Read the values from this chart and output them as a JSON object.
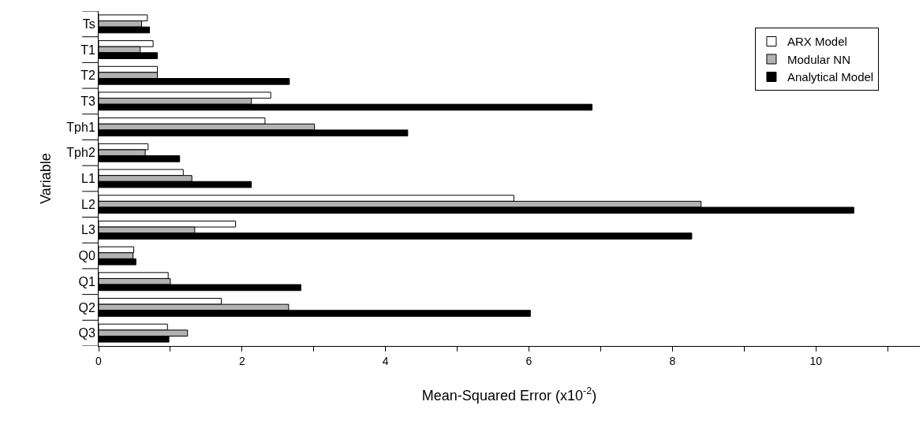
{
  "chart_data": {
    "type": "bar",
    "orientation": "horizontal",
    "xlabel": "Mean-Squared Error (x10$^{-2}$)",
    "ylabel": "Variable",
    "categories": [
      "Ts",
      "T1",
      "T2",
      "T3",
      "Tph1",
      "Tph2",
      "L1",
      "L2",
      "L3",
      "Q0",
      "Q1",
      "Q2",
      "Q3"
    ],
    "series": [
      {
        "name": "ARX Model",
        "color": "#ffffff",
        "values": [
          0.68,
          0.76,
          0.82,
          2.4,
          2.32,
          0.69,
          1.18,
          5.79,
          1.91,
          0.49,
          0.97,
          1.71,
          0.96
        ]
      },
      {
        "name": "Modular NN",
        "color": "#b2b2b2",
        "values": [
          0.6,
          0.58,
          0.82,
          2.13,
          3.01,
          0.65,
          1.3,
          8.4,
          1.34,
          0.48,
          1.0,
          2.65,
          1.24
        ]
      },
      {
        "name": "Analytical Model",
        "color": "#000000",
        "values": [
          0.71,
          0.82,
          2.66,
          6.88,
          4.31,
          1.13,
          2.13,
          10.53,
          8.27,
          0.52,
          2.82,
          6.02,
          0.98
        ]
      }
    ],
    "xlim": [
      0,
      11.45
    ],
    "xticks": [
      0,
      {
        "value": 1,
        "label": null
      },
      2,
      {
        "value": 3,
        "label": null
      },
      4,
      {
        "value": 5,
        "label": null
      },
      6,
      {
        "value": 7,
        "label": null
      },
      8,
      {
        "value": 9,
        "label": null
      },
      10,
      {
        "value": 11,
        "label": null
      }
    ],
    "legend": "top right"
  }
}
